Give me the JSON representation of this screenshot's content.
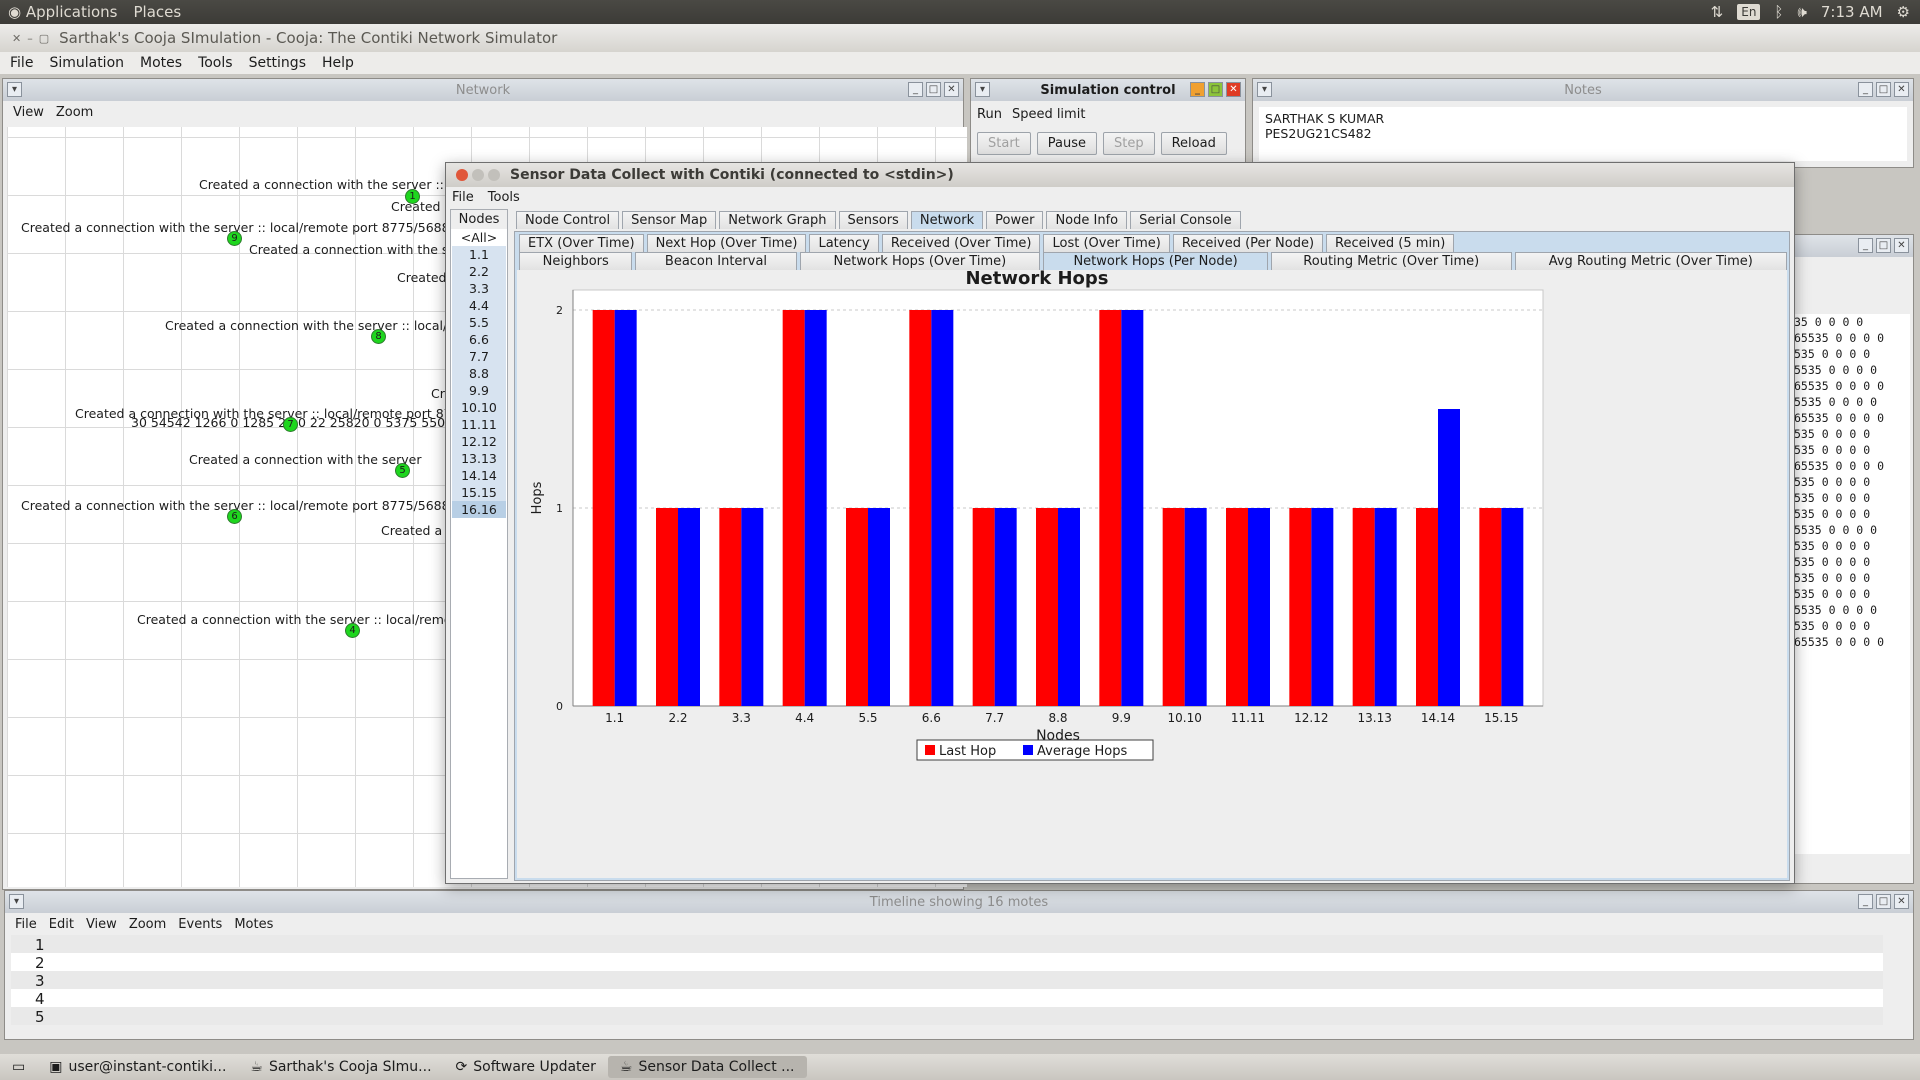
{
  "topbar": {
    "applications": "Applications",
    "places": "Places",
    "lang": "En",
    "clock": "7:13 AM"
  },
  "main_window": {
    "title": "Sarthak's Cooja SImulation - Cooja: The Contiki Network Simulator",
    "menu": [
      "File",
      "Simulation",
      "Motes",
      "Tools",
      "Settings",
      "Help"
    ]
  },
  "network": {
    "title": "Network",
    "menu": [
      "View",
      "Zoom"
    ],
    "messages": [
      "Created a connection with the server ::",
      "Created a",
      "Created a connection with the server :: local/remote port 8775/5688",
      "Created a connection with the s",
      "Created",
      "Created a connection with the server :: local/",
      "Cr",
      "Created a connection with the server :: local/remote port 87",
      "30 54542 1266 0 1285 27 0 22 25820 0 5375 550",
      "Created a connection with the server",
      "Created a connection with the server :: local/remote port 8775/5688",
      "Created a",
      "Created a connection with the server :: local/remo"
    ],
    "motes": [
      "1",
      "9",
      "8",
      "7",
      "5",
      "6",
      "4"
    ]
  },
  "sim_control": {
    "title": "Simulation control",
    "menu": [
      "Run",
      "Speed limit"
    ],
    "buttons": [
      "Start",
      "Pause",
      "Step",
      "Reload"
    ]
  },
  "notes": {
    "title": "Notes",
    "line1": "SARTHAK S KUMAR",
    "line2": "PES2UG21CS482"
  },
  "log_lines": [
    "35 0 0 0 0",
    "65535 0 0 0 0",
    "535 0 0 0 0",
    "5535 0 0 0 0",
    "65535 0 0 0 0",
    "5535 0 0 0 0",
    "65535 0 0 0 0",
    "535 0 0 0 0",
    "535 0 0 0 0",
    "65535 0 0 0 0",
    "535 0 0 0 0",
    "535 0 0 0 0",
    "535 0 0 0 0",
    "5535 0 0 0 0",
    "535 0 0 0 0",
    "535 0 0 0 0",
    "535 0 0 0 0",
    "535 0 0 0 0",
    "5535 0 0 0 0",
    "535 0 0 0 0",
    "65535 0 0 0 0"
  ],
  "dialog": {
    "title": "Sensor Data Collect with Contiki (connected to <stdin>)",
    "menu": [
      "File",
      "Tools"
    ],
    "nodes_header": "Nodes",
    "nodes": [
      "<All>",
      "1.1",
      "2.2",
      "3.3",
      "4.4",
      "5.5",
      "6.6",
      "7.7",
      "8.8",
      "9.9",
      "10.10",
      "11.11",
      "12.12",
      "13.13",
      "14.14",
      "15.15",
      "16.16"
    ],
    "main_tabs": [
      "Node Control",
      "Sensor Map",
      "Network Graph",
      "Sensors",
      "Network",
      "Power",
      "Node Info",
      "Serial Console"
    ],
    "sub_tabs_row1": [
      "ETX (Over Time)",
      "Next Hop (Over Time)",
      "Latency",
      "Received (Over Time)",
      "Lost (Over Time)",
      "Received (Per Node)",
      "Received (5 min)"
    ],
    "sub_tabs_row2": [
      "Neighbors",
      "Beacon Interval",
      "Network Hops (Over Time)",
      "Network Hops (Per Node)",
      "Routing Metric (Over Time)",
      "Avg Routing Metric (Over Time)"
    ]
  },
  "chart_data": {
    "type": "bar",
    "title": "Network Hops",
    "xlabel": "Nodes",
    "ylabel": "Hops",
    "ylim": [
      0,
      2
    ],
    "yticks": [
      "0",
      "1",
      "2"
    ],
    "grid": true,
    "legend_position": "bottom",
    "categories": [
      "1.1",
      "2.2",
      "3.3",
      "4.4",
      "5.5",
      "6.6",
      "7.7",
      "8.8",
      "9.9",
      "10.10",
      "11.11",
      "12.12",
      "13.13",
      "14.14",
      "15.15"
    ],
    "series": [
      {
        "name": "Last Hop",
        "color": "#ff0000",
        "values": [
          2,
          1,
          1,
          2,
          1,
          2,
          1,
          1,
          2,
          1,
          1,
          1,
          1,
          1,
          1
        ]
      },
      {
        "name": "Average Hops",
        "color": "#0000ff",
        "values": [
          2,
          1,
          1,
          2,
          1,
          2,
          1,
          1,
          2,
          1,
          1,
          1,
          1,
          1.5,
          1
        ]
      }
    ]
  },
  "timeline": {
    "title": "Timeline showing 16 motes",
    "menu": [
      "File",
      "Edit",
      "View",
      "Zoom",
      "Events",
      "Motes"
    ],
    "rows": [
      "1",
      "2",
      "3",
      "4",
      "5"
    ]
  },
  "taskbar": {
    "tasks": [
      "user@instant-contiki...",
      "Sarthak's Cooja SImu...",
      "Software Updater",
      "Sensor Data Collect ..."
    ]
  }
}
